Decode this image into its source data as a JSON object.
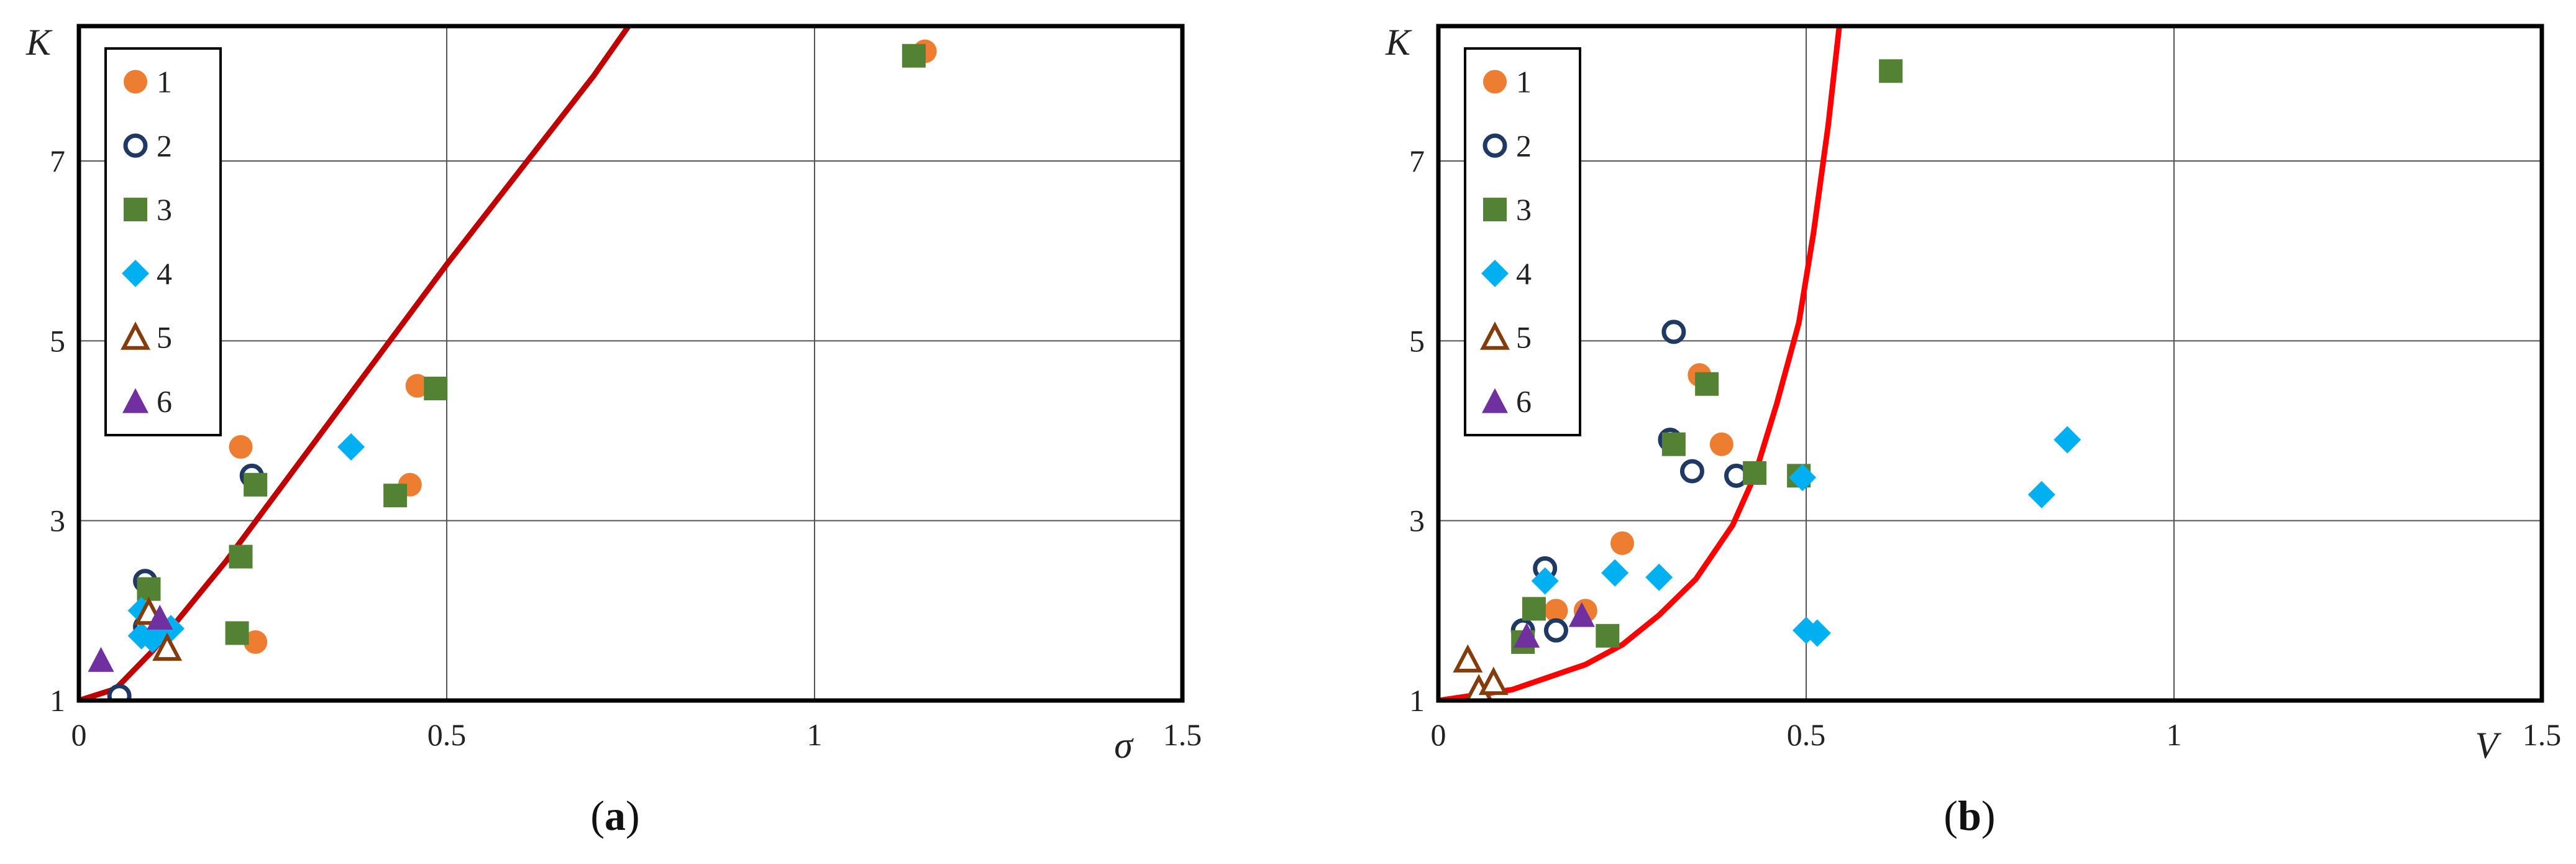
{
  "chart_data": [
    {
      "type": "scatter",
      "panel_label": "a",
      "xlabel": "σ",
      "ylabel": "K",
      "xlim": [
        0,
        1.5
      ],
      "ylim": [
        1,
        8.5
      ],
      "x_ticks": [
        "0",
        "0.5",
        "1",
        "1.5"
      ],
      "x_tick_values": [
        0,
        0.5,
        1,
        1.5
      ],
      "y_ticks": [
        "1",
        "3",
        "5",
        "7"
      ],
      "y_tick_values": [
        1,
        3,
        5,
        7
      ],
      "grid": true,
      "legend_position": "top-left",
      "series": [
        {
          "name": "1",
          "marker": "circle-filled",
          "color": "#ED7D31",
          "points": [
            [
              0.22,
              3.82
            ],
            [
              0.24,
              1.65
            ],
            [
              0.46,
              4.5
            ],
            [
              0.45,
              3.4
            ],
            [
              1.15,
              8.22
            ]
          ]
        },
        {
          "name": "2",
          "marker": "circle-open",
          "color": "#1F3864",
          "points": [
            [
              0.055,
              1.05
            ],
            [
              0.09,
              2.33
            ],
            [
              0.09,
              1.82
            ],
            [
              0.235,
              3.5
            ]
          ]
        },
        {
          "name": "3",
          "marker": "square",
          "color": "#548235",
          "points": [
            [
              0.095,
              2.24
            ],
            [
              0.215,
              1.75
            ],
            [
              0.22,
              2.6
            ],
            [
              0.24,
              3.4
            ],
            [
              0.43,
              3.28
            ],
            [
              0.485,
              4.47
            ],
            [
              1.135,
              8.17
            ]
          ]
        },
        {
          "name": "4",
          "marker": "diamond",
          "color": "#00B0F0",
          "points": [
            [
              0.085,
              2.0
            ],
            [
              0.085,
              1.72
            ],
            [
              0.1,
              1.68
            ],
            [
              0.115,
              1.75
            ],
            [
              0.125,
              1.8
            ],
            [
              0.37,
              3.82
            ]
          ]
        },
        {
          "name": "5",
          "marker": "triangle-open",
          "color": "#843C0C",
          "points": [
            [
              0.095,
              1.98
            ],
            [
              0.12,
              1.58
            ]
          ]
        },
        {
          "name": "6",
          "marker": "triangle-filled",
          "color": "#7030A0",
          "points": [
            [
              0.03,
              1.45
            ],
            [
              0.11,
              1.92
            ]
          ]
        },
        {
          "name": "",
          "kind": "line",
          "color": "#C00000",
          "points": [
            [
              0,
              1.0
            ],
            [
              0.05,
              1.13
            ],
            [
              0.1,
              1.55
            ],
            [
              0.15,
              2.05
            ],
            [
              0.2,
              2.55
            ],
            [
              0.25,
              3.1
            ],
            [
              0.3,
              3.65
            ],
            [
              0.35,
              4.2
            ],
            [
              0.4,
              4.75
            ],
            [
              0.5,
              5.85
            ],
            [
              0.6,
              6.9
            ],
            [
              0.7,
              7.95
            ],
            [
              0.79,
              9.0
            ]
          ]
        }
      ]
    },
    {
      "type": "scatter",
      "panel_label": "b",
      "xlabel": "V",
      "ylabel": "K",
      "xlim": [
        0,
        1.5
      ],
      "ylim": [
        1,
        8.5
      ],
      "x_ticks": [
        "0",
        "0.5",
        "1",
        "1.5"
      ],
      "x_tick_values": [
        0,
        0.5,
        1,
        1.5
      ],
      "y_ticks": [
        "1",
        "3",
        "5",
        "7"
      ],
      "y_tick_values": [
        1,
        3,
        5,
        7
      ],
      "grid": true,
      "legend_position": "top-left",
      "series": [
        {
          "name": "1",
          "marker": "circle-filled",
          "color": "#ED7D31",
          "points": [
            [
              0.16,
              2.0
            ],
            [
              0.2,
              2.0
            ],
            [
              0.25,
              2.75
            ],
            [
              0.355,
              4.62
            ],
            [
              0.385,
              3.85
            ]
          ]
        },
        {
          "name": "2",
          "marker": "circle-open",
          "color": "#1F3864",
          "points": [
            [
              0.115,
              1.78
            ],
            [
              0.145,
              2.47
            ],
            [
              0.16,
              1.78
            ],
            [
              0.315,
              3.9
            ],
            [
              0.32,
              5.1
            ],
            [
              0.345,
              3.55
            ],
            [
              0.405,
              3.5
            ]
          ]
        },
        {
          "name": "3",
          "marker": "square",
          "color": "#548235",
          "points": [
            [
              0.115,
              1.65
            ],
            [
              0.13,
              2.02
            ],
            [
              0.23,
              1.72
            ],
            [
              0.32,
              3.85
            ],
            [
              0.365,
              4.52
            ],
            [
              0.43,
              3.53
            ],
            [
              0.49,
              3.5
            ],
            [
              0.615,
              8.0
            ]
          ]
        },
        {
          "name": "4",
          "marker": "diamond",
          "color": "#00B0F0",
          "points": [
            [
              0.145,
              2.33
            ],
            [
              0.24,
              2.42
            ],
            [
              0.3,
              2.37
            ],
            [
              0.495,
              3.48
            ],
            [
              0.5,
              1.78
            ],
            [
              0.515,
              1.75
            ],
            [
              0.82,
              3.29
            ],
            [
              0.855,
              3.9
            ]
          ]
        },
        {
          "name": "5",
          "marker": "triangle-open",
          "color": "#843C0C",
          "points": [
            [
              0.04,
              1.45
            ],
            [
              0.055,
              1.12
            ],
            [
              0.075,
              1.2
            ]
          ]
        },
        {
          "name": "6",
          "marker": "triangle-filled",
          "color": "#7030A0",
          "points": [
            [
              0.12,
              1.72
            ],
            [
              0.195,
              1.95
            ]
          ]
        },
        {
          "name": "",
          "kind": "line",
          "color": "#FF0000",
          "points": [
            [
              0,
              1.0
            ],
            [
              0.1,
              1.12
            ],
            [
              0.2,
              1.4
            ],
            [
              0.25,
              1.62
            ],
            [
              0.3,
              1.95
            ],
            [
              0.35,
              2.35
            ],
            [
              0.4,
              2.95
            ],
            [
              0.43,
              3.5
            ],
            [
              0.46,
              4.3
            ],
            [
              0.49,
              5.2
            ],
            [
              0.51,
              6.2
            ],
            [
              0.53,
              7.4
            ],
            [
              0.545,
              8.5
            ],
            [
              0.555,
              9.0
            ]
          ]
        }
      ]
    }
  ]
}
